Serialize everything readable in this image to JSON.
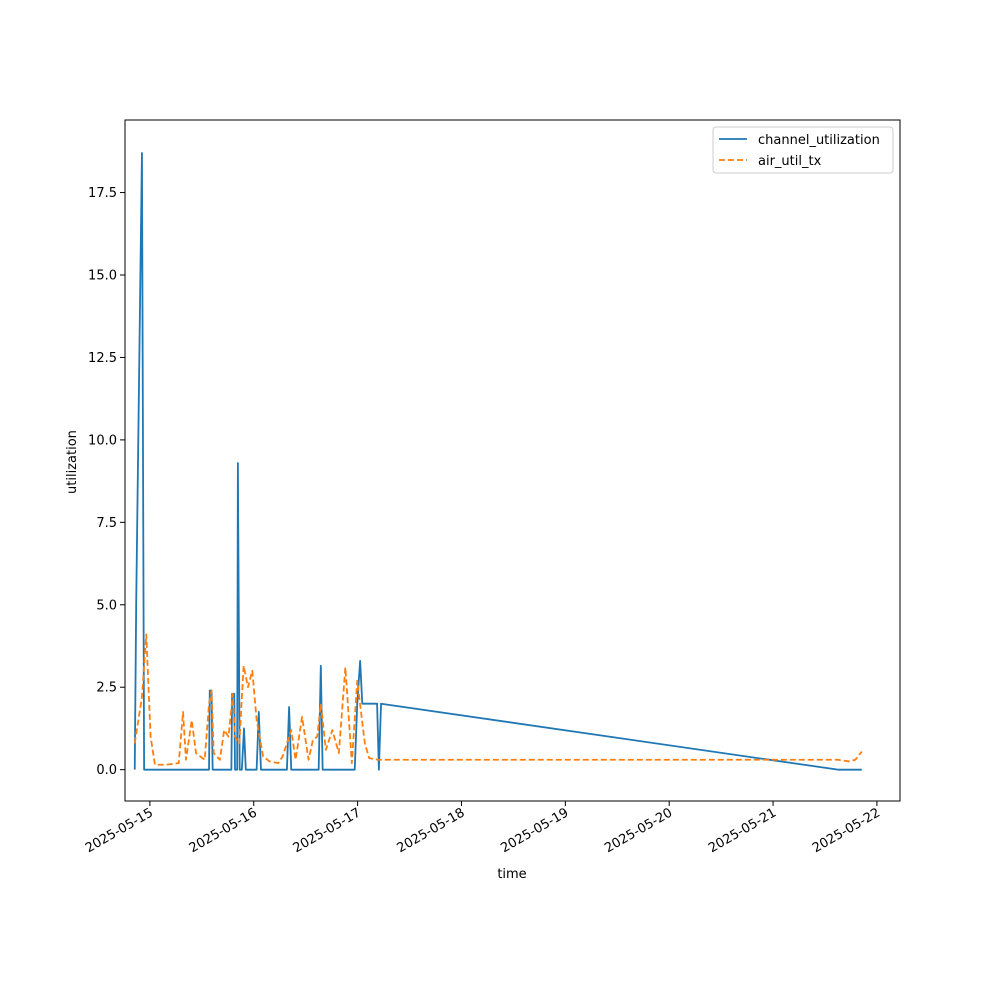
{
  "chart_data": {
    "type": "line",
    "title": "",
    "xlabel": "time",
    "ylabel": "utilization",
    "x_axis_type": "date",
    "x_ticks": [
      "2025-05-15",
      "2025-05-16",
      "2025-05-17",
      "2025-05-18",
      "2025-05-19",
      "2025-05-20",
      "2025-05-21",
      "2025-05-22"
    ],
    "xlim": [
      "2025-05-14 18:15",
      "2025-05-22 05:20"
    ],
    "ylim": [
      -0.95,
      19.7
    ],
    "y_ticks": [
      0.0,
      2.5,
      5.0,
      7.5,
      10.0,
      12.5,
      15.0,
      17.5
    ],
    "y_tick_labels": [
      "0.0",
      "2.5",
      "5.0",
      "7.5",
      "10.0",
      "12.5",
      "15.0",
      "17.5"
    ],
    "grid": false,
    "legend_position": "top-right",
    "series": [
      {
        "name": "channel_utilization",
        "color": "#1f77b4",
        "style": "solid",
        "points": [
          [
            "2025-05-14 20:30",
            0.0
          ],
          [
            "2025-05-14 20:50",
            5.0
          ],
          [
            "2025-05-14 22:10",
            18.7
          ],
          [
            "2025-05-14 22:40",
            0.0
          ],
          [
            "2025-05-15 13:40",
            0.0
          ],
          [
            "2025-05-15 13:50",
            2.4
          ],
          [
            "2025-05-15 14:15",
            2.4
          ],
          [
            "2025-05-15 14:30",
            0.0
          ],
          [
            "2025-05-15 18:50",
            0.0
          ],
          [
            "2025-05-15 19:00",
            2.3
          ],
          [
            "2025-05-15 19:30",
            2.3
          ],
          [
            "2025-05-15 19:40",
            0.0
          ],
          [
            "2025-05-15 20:10",
            0.0
          ],
          [
            "2025-05-15 20:20",
            9.3
          ],
          [
            "2025-05-15 20:45",
            0.0
          ],
          [
            "2025-05-15 21:15",
            0.0
          ],
          [
            "2025-05-15 21:45",
            1.25
          ],
          [
            "2025-05-15 22:10",
            0.0
          ],
          [
            "2025-05-16 00:40",
            0.0
          ],
          [
            "2025-05-16 01:10",
            1.75
          ],
          [
            "2025-05-16 01:40",
            0.0
          ],
          [
            "2025-05-16 07:40",
            0.0
          ],
          [
            "2025-05-16 08:10",
            1.9
          ],
          [
            "2025-05-16 08:40",
            0.0
          ],
          [
            "2025-05-16 15:00",
            0.0
          ],
          [
            "2025-05-16 15:30",
            3.15
          ],
          [
            "2025-05-16 15:55",
            0.0
          ],
          [
            "2025-05-16 23:20",
            0.0
          ],
          [
            "2025-05-16 23:55",
            2.0
          ],
          [
            "2025-05-17 00:35",
            3.3
          ],
          [
            "2025-05-17 01:05",
            2.0
          ],
          [
            "2025-05-17 04:30",
            2.0
          ],
          [
            "2025-05-17 04:55",
            0.0
          ],
          [
            "2025-05-17 05:25",
            2.0
          ],
          [
            "2025-05-21 15:00",
            0.0
          ],
          [
            "2025-05-21 20:30",
            0.0
          ]
        ]
      },
      {
        "name": "air_util_tx",
        "color": "#ff7f0e",
        "style": "dashed",
        "points": [
          [
            "2025-05-14 20:30",
            0.8
          ],
          [
            "2025-05-14 22:10",
            2.2
          ],
          [
            "2025-05-14 23:10",
            4.1
          ],
          [
            "2025-05-15 00:10",
            1.0
          ],
          [
            "2025-05-15 01:10",
            0.15
          ],
          [
            "2025-05-15 03:40",
            0.15
          ],
          [
            "2025-05-15 06:40",
            0.2
          ],
          [
            "2025-05-15 07:40",
            1.75
          ],
          [
            "2025-05-15 08:20",
            0.3
          ],
          [
            "2025-05-15 09:40",
            1.5
          ],
          [
            "2025-05-15 10:40",
            0.5
          ],
          [
            "2025-05-15 12:40",
            0.3
          ],
          [
            "2025-05-15 13:40",
            2.0
          ],
          [
            "2025-05-15 14:15",
            2.4
          ],
          [
            "2025-05-15 14:45",
            0.5
          ],
          [
            "2025-05-15 16:10",
            0.3
          ],
          [
            "2025-05-15 17:10",
            1.2
          ],
          [
            "2025-05-15 18:10",
            1.0
          ],
          [
            "2025-05-15 19:10",
            2.3
          ],
          [
            "2025-05-15 19:40",
            1.0
          ],
          [
            "2025-05-15 20:40",
            0.8
          ],
          [
            "2025-05-15 21:40",
            3.15
          ],
          [
            "2025-05-15 22:40",
            2.5
          ],
          [
            "2025-05-15 23:40",
            3.0
          ],
          [
            "2025-05-16 00:40",
            1.5
          ],
          [
            "2025-05-16 02:10",
            0.4
          ],
          [
            "2025-05-16 03:40",
            0.25
          ],
          [
            "2025-05-16 05:40",
            0.2
          ],
          [
            "2025-05-16 06:40",
            0.4
          ],
          [
            "2025-05-16 08:40",
            1.2
          ],
          [
            "2025-05-16 09:40",
            0.3
          ],
          [
            "2025-05-16 11:10",
            1.6
          ],
          [
            "2025-05-16 12:40",
            0.3
          ],
          [
            "2025-05-16 13:40",
            0.9
          ],
          [
            "2025-05-16 14:40",
            1.0
          ],
          [
            "2025-05-16 15:30",
            2.0
          ],
          [
            "2025-05-16 16:40",
            0.6
          ],
          [
            "2025-05-16 18:10",
            1.2
          ],
          [
            "2025-05-16 19:40",
            0.5
          ],
          [
            "2025-05-16 21:10",
            3.1
          ],
          [
            "2025-05-16 22:40",
            0.2
          ],
          [
            "2025-05-16 23:55",
            2.7
          ],
          [
            "2025-05-17 01:40",
            0.8
          ],
          [
            "2025-05-17 02:40",
            0.35
          ],
          [
            "2025-05-17 04:40",
            0.3
          ],
          [
            "2025-05-17 06:40",
            0.3
          ],
          [
            "2025-05-21 15:00",
            0.3
          ],
          [
            "2025-05-21 17:30",
            0.25
          ],
          [
            "2025-05-21 19:00",
            0.3
          ],
          [
            "2025-05-21 20:30",
            0.55
          ]
        ]
      }
    ]
  }
}
